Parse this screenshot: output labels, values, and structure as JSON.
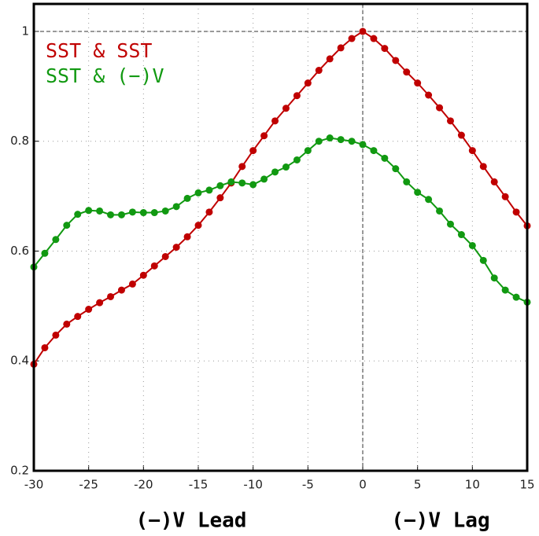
{
  "chart_data": {
    "type": "line",
    "x": [
      -30,
      -29,
      -28,
      -27,
      -26,
      -25,
      -24,
      -23,
      -22,
      -21,
      -20,
      -19,
      -18,
      -17,
      -16,
      -15,
      -14,
      -13,
      -12,
      -11,
      -10,
      -9,
      -8,
      -7,
      -6,
      -5,
      -4,
      -3,
      -2,
      -1,
      0,
      1,
      2,
      3,
      4,
      5,
      6,
      7,
      8,
      9,
      10,
      11,
      12,
      13,
      14,
      15
    ],
    "series": [
      {
        "name": "SST & SST",
        "color": "#c00000",
        "values": [
          0.394,
          0.424,
          0.447,
          0.467,
          0.481,
          0.494,
          0.506,
          0.517,
          0.529,
          0.54,
          0.556,
          0.573,
          0.59,
          0.607,
          0.626,
          0.647,
          0.671,
          0.697,
          0.724,
          0.754,
          0.783,
          0.81,
          0.837,
          0.86,
          0.883,
          0.906,
          0.929,
          0.95,
          0.97,
          0.987,
          1.0,
          0.987,
          0.969,
          0.947,
          0.926,
          0.906,
          0.884,
          0.861,
          0.837,
          0.811,
          0.783,
          0.754,
          0.726,
          0.699,
          0.671,
          0.646
        ]
      },
      {
        "name": "SST & (−)V",
        "color": "#119911",
        "values": [
          0.571,
          0.596,
          0.621,
          0.647,
          0.667,
          0.674,
          0.673,
          0.666,
          0.666,
          0.671,
          0.67,
          0.67,
          0.673,
          0.681,
          0.696,
          0.706,
          0.711,
          0.719,
          0.726,
          0.724,
          0.721,
          0.731,
          0.744,
          0.753,
          0.766,
          0.783,
          0.8,
          0.806,
          0.803,
          0.8,
          0.794,
          0.783,
          0.769,
          0.75,
          0.726,
          0.707,
          0.694,
          0.673,
          0.649,
          0.63,
          0.61,
          0.583,
          0.551,
          0.529,
          0.516,
          0.507
        ]
      }
    ],
    "xlim": [
      -30,
      15
    ],
    "xticks": [
      -30,
      -25,
      -20,
      -15,
      -10,
      -5,
      0,
      5,
      10,
      15
    ],
    "ylim": [
      0.2,
      1.05
    ],
    "yticks": [
      0.2,
      0.4,
      0.6,
      0.8,
      1
    ],
    "grid": true,
    "hline": 1,
    "vline": 0,
    "annotations": [
      "(−)V Lead",
      "(−)V Lag"
    ]
  }
}
